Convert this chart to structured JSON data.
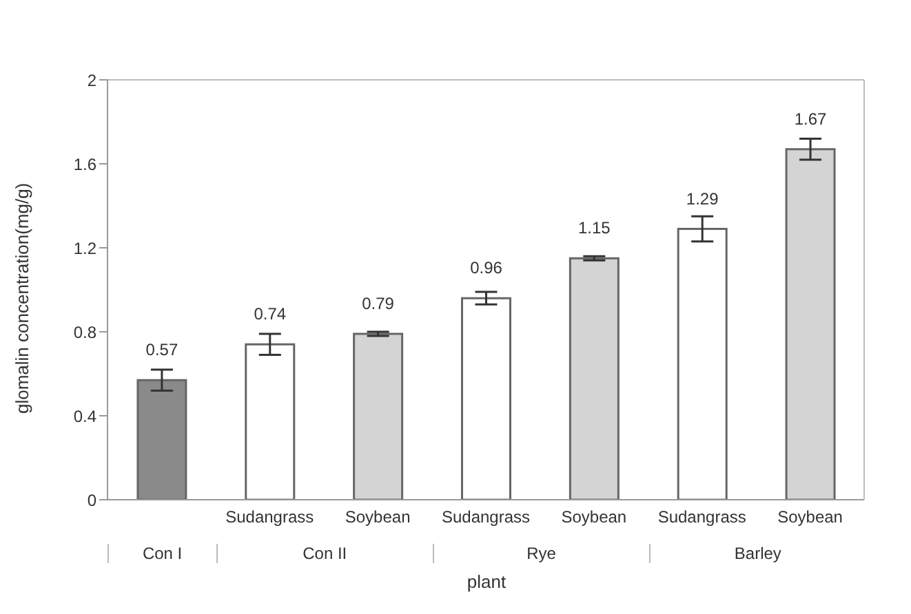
{
  "chart_data": {
    "type": "bar",
    "categories": [
      null,
      "Sudangrass",
      "Soybean",
      "Sudangrass",
      "Soybean",
      "Sudangrass",
      "Soybean"
    ],
    "values": [
      0.57,
      0.74,
      0.79,
      0.96,
      1.15,
      1.29,
      1.67
    ],
    "colors": [
      "#8a8a8a",
      "#ffffff",
      "#d4d4d4",
      "#ffffff",
      "#d4d4d4",
      "#ffffff",
      "#d4d4d4"
    ],
    "errors": [
      0.05,
      0.05,
      0.01,
      0.03,
      0.01,
      0.06,
      0.05
    ],
    "data_labels": true,
    "xlabel": "plant",
    "ylabel": "glomalin concentration(mg/g)",
    "annotations": [
      "Con I",
      "Con II",
      "Rye",
      "Barley"
    ],
    "ylim": [
      0,
      2
    ],
    "yticks": [
      0,
      0.4,
      0.8,
      1.2,
      1.6,
      2
    ]
  }
}
